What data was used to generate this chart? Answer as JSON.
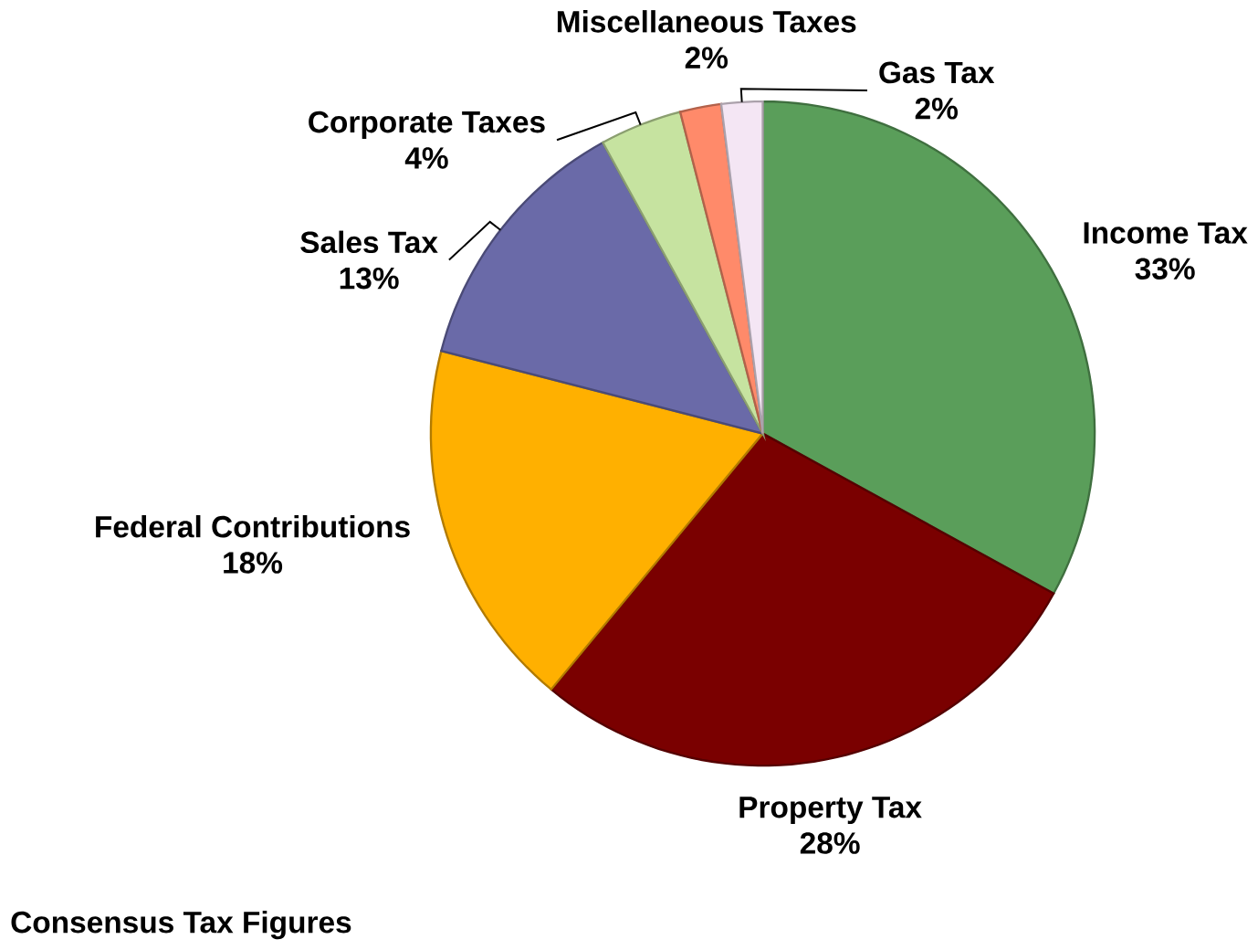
{
  "chart_data": {
    "type": "pie",
    "categories": [
      "Income Tax",
      "Property Tax",
      "Federal Contributions",
      "Sales Tax",
      "Corporate Taxes",
      "Miscellaneous Taxes",
      "Gas Tax"
    ],
    "values": [
      33,
      28,
      18,
      13,
      4,
      2,
      2
    ],
    "value_labels": [
      "33%",
      "28%",
      "18%",
      "13%",
      "4%",
      "2%",
      "2%"
    ],
    "colors": [
      "#5a9e5a",
      "#7a0000",
      "#ffb000",
      "#6a6aa8",
      "#c6e3a0",
      "#ff8a6a",
      "#f4e6f4"
    ],
    "annotations": [
      "Consensus Tax Figures"
    ]
  }
}
